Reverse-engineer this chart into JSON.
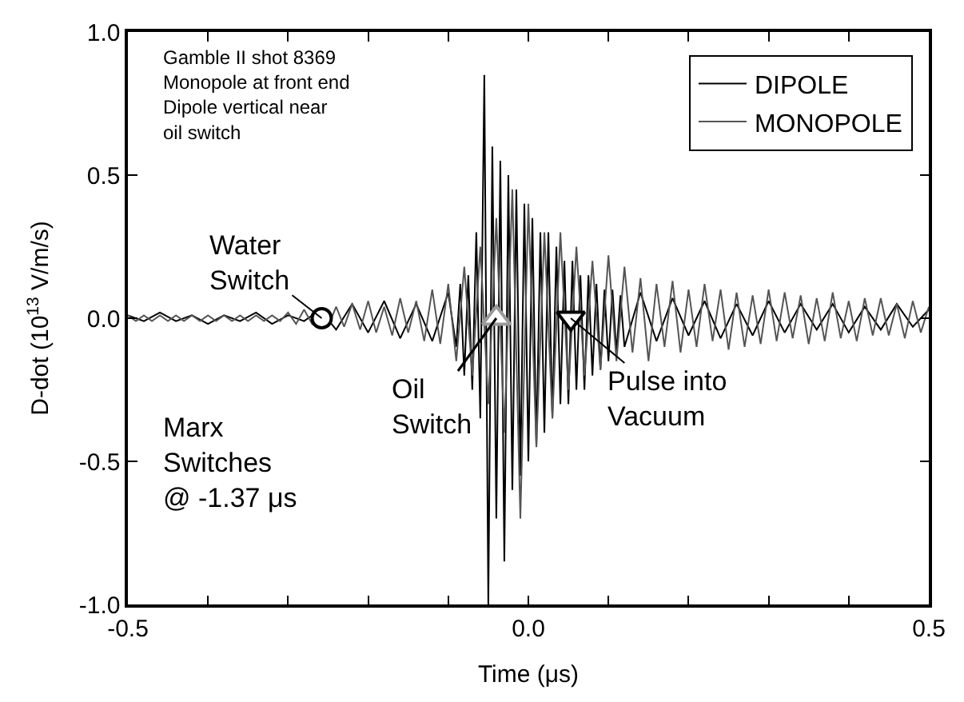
{
  "chart_data": {
    "type": "line",
    "xlabel": "Time (μs)",
    "ylabel": "D-dot (10$^{13}$ V/m/s)",
    "xlim": [
      -0.5,
      0.5
    ],
    "xticks": [
      {
        "value": -0.5,
        "label": "-0.5"
      },
      {
        "value": -0.4,
        "label": null
      },
      {
        "value": -0.3,
        "label": null
      },
      {
        "value": -0.2,
        "label": null
      },
      {
        "value": -0.1,
        "label": null
      },
      {
        "value": 0,
        "label": "0.0"
      },
      {
        "value": 0.1,
        "label": null
      },
      {
        "value": 0.2,
        "label": null
      },
      {
        "value": 0.3,
        "label": null
      },
      {
        "value": 0.4,
        "label": null
      },
      {
        "value": 0.5,
        "label": "0.5"
      }
    ],
    "ylim": [
      -1.0,
      1.0
    ],
    "yticks": [
      {
        "value": -1,
        "label": "-1.0"
      },
      {
        "value": -0.5,
        "label": "-0.5"
      },
      {
        "value": 0,
        "label": "0.0"
      },
      {
        "value": 0.5,
        "label": "0.5"
      },
      {
        "value": 1,
        "label": "1.0"
      }
    ],
    "legend": "top right",
    "line_style": "solid",
    "series": [
      {
        "name": "DIPOLE",
        "color": "#000000",
        "x": [
          -0.5,
          -0.48,
          -0.46,
          -0.44,
          -0.42,
          -0.4,
          -0.38,
          -0.36,
          -0.34,
          -0.32,
          -0.3,
          -0.28,
          -0.26,
          -0.24,
          -0.22,
          -0.2,
          -0.18,
          -0.16,
          -0.14,
          -0.12,
          -0.1,
          -0.09,
          -0.085,
          -0.08,
          -0.075,
          -0.07,
          -0.065,
          -0.06,
          -0.055,
          -0.05,
          -0.045,
          -0.04,
          -0.035,
          -0.03,
          -0.025,
          -0.02,
          -0.015,
          -0.01,
          -0.005,
          0,
          0.005,
          0.01,
          0.015,
          0.02,
          0.025,
          0.03,
          0.035,
          0.04,
          0.045,
          0.05,
          0.055,
          0.06,
          0.065,
          0.07,
          0.075,
          0.08,
          0.085,
          0.09,
          0.095,
          0.1,
          0.105,
          0.11,
          0.115,
          0.12,
          0.14,
          0.16,
          0.18,
          0.2,
          0.22,
          0.24,
          0.26,
          0.28,
          0.3,
          0.32,
          0.34,
          0.36,
          0.38,
          0.4,
          0.42,
          0.44,
          0.46,
          0.48,
          0.5
        ],
        "values": [
          0.01,
          -0.01,
          0.02,
          -0.01,
          0.01,
          -0.02,
          0.01,
          -0.01,
          0.02,
          -0.02,
          0.01,
          -0.01,
          0.03,
          -0.04,
          0.05,
          -0.05,
          0.06,
          -0.07,
          0.05,
          -0.08,
          0.09,
          -0.1,
          0.12,
          -0.2,
          0.15,
          -0.25,
          0.3,
          -0.35,
          0.85,
          -1.0,
          0.6,
          -0.7,
          0.55,
          -0.85,
          0.5,
          -0.6,
          0.45,
          -0.55,
          0.4,
          -0.5,
          0.35,
          -0.45,
          0.3,
          -0.4,
          0.3,
          -0.35,
          0.25,
          -0.3,
          0.2,
          -0.3,
          0.2,
          -0.25,
          0.15,
          -0.25,
          0.15,
          -0.2,
          0.12,
          -0.18,
          0.1,
          -0.15,
          0.1,
          -0.12,
          0.08,
          -0.1,
          0.09,
          -0.08,
          0.07,
          -0.06,
          0.06,
          -0.07,
          0.05,
          -0.06,
          0.06,
          -0.05,
          0.05,
          -0.04,
          0.05,
          -0.05,
          0.04,
          -0.04,
          0.05,
          -0.03,
          0.03
        ]
      },
      {
        "name": "MONOPOLE",
        "color": "#555555",
        "x": [
          -0.5,
          -0.49,
          -0.48,
          -0.47,
          -0.46,
          -0.45,
          -0.44,
          -0.43,
          -0.42,
          -0.41,
          -0.4,
          -0.39,
          -0.38,
          -0.37,
          -0.36,
          -0.35,
          -0.34,
          -0.33,
          -0.32,
          -0.31,
          -0.3,
          -0.29,
          -0.28,
          -0.27,
          -0.26,
          -0.25,
          -0.24,
          -0.23,
          -0.22,
          -0.21,
          -0.2,
          -0.19,
          -0.18,
          -0.17,
          -0.16,
          -0.15,
          -0.14,
          -0.13,
          -0.12,
          -0.11,
          -0.1,
          -0.09,
          -0.08,
          -0.07,
          -0.06,
          -0.05,
          -0.04,
          -0.03,
          -0.02,
          -0.01,
          0,
          0.01,
          0.02,
          0.03,
          0.04,
          0.05,
          0.06,
          0.07,
          0.08,
          0.09,
          0.1,
          0.11,
          0.12,
          0.13,
          0.14,
          0.15,
          0.16,
          0.17,
          0.18,
          0.19,
          0.2,
          0.21,
          0.22,
          0.23,
          0.24,
          0.25,
          0.26,
          0.27,
          0.28,
          0.29,
          0.3,
          0.31,
          0.32,
          0.33,
          0.34,
          0.35,
          0.36,
          0.37,
          0.38,
          0.39,
          0.4,
          0.41,
          0.42,
          0.43,
          0.44,
          0.45,
          0.46,
          0.47,
          0.48,
          0.49,
          0.5
        ],
        "values": [
          0.01,
          -0.01,
          0.01,
          -0.01,
          0.01,
          -0.01,
          0.01,
          -0.01,
          0.01,
          -0.01,
          0.01,
          -0.01,
          0.01,
          -0.01,
          0.01,
          -0.01,
          0.01,
          -0.01,
          0.01,
          -0.01,
          0.02,
          -0.02,
          0.03,
          -0.02,
          0.02,
          -0.03,
          0.04,
          -0.03,
          0.05,
          -0.04,
          0.06,
          -0.05,
          0.04,
          -0.06,
          0.07,
          -0.05,
          0.06,
          -0.08,
          0.1,
          -0.09,
          0.12,
          -0.15,
          0.18,
          -0.2,
          0.25,
          -0.3,
          0.35,
          -0.4,
          0.45,
          -0.7,
          0.4,
          -0.45,
          0.3,
          -0.35,
          0.3,
          -0.25,
          0.25,
          -0.2,
          0.2,
          -0.18,
          0.22,
          -0.15,
          0.18,
          -0.12,
          0.14,
          -0.15,
          0.12,
          -0.1,
          0.13,
          -0.12,
          0.1,
          -0.1,
          0.12,
          -0.08,
          0.1,
          -0.11,
          0.09,
          -0.1,
          0.08,
          -0.09,
          0.1,
          -0.08,
          0.09,
          -0.07,
          0.08,
          -0.09,
          0.07,
          -0.08,
          0.09,
          -0.07,
          0.06,
          -0.08,
          0.07,
          -0.06,
          0.07,
          -0.06,
          0.05,
          -0.07,
          0.06,
          -0.05,
          0.04
        ]
      },
      {
        "type": "scatter",
        "marker": "circle",
        "color": "#000000",
        "x": [
          -0.258
        ],
        "values": [
          0
        ]
      },
      {
        "type": "scatter",
        "marker": "triangle",
        "color": "#9a9a9a",
        "x": [
          -0.04
        ],
        "values": [
          0
        ]
      },
      {
        "type": "scatter",
        "marker": "triangle-down",
        "color": "#000000",
        "x": [
          0.053
        ],
        "values": [
          0
        ]
      }
    ],
    "annotations": [
      "Gamble II shot 8369\nMonopole at front end\nDipole vertical near\noil switch",
      {
        "text": "Water\nSwitch",
        "x": -0.258,
        "y": 0
      },
      {
        "text": "Oil\nSwitch",
        "x": -0.04,
        "y": 0
      },
      {
        "text": "Pulse into\nVacuum",
        "x": 0.053,
        "y": 0
      },
      "Marx\nSwitches\n@ -1.37 μs"
    ]
  }
}
